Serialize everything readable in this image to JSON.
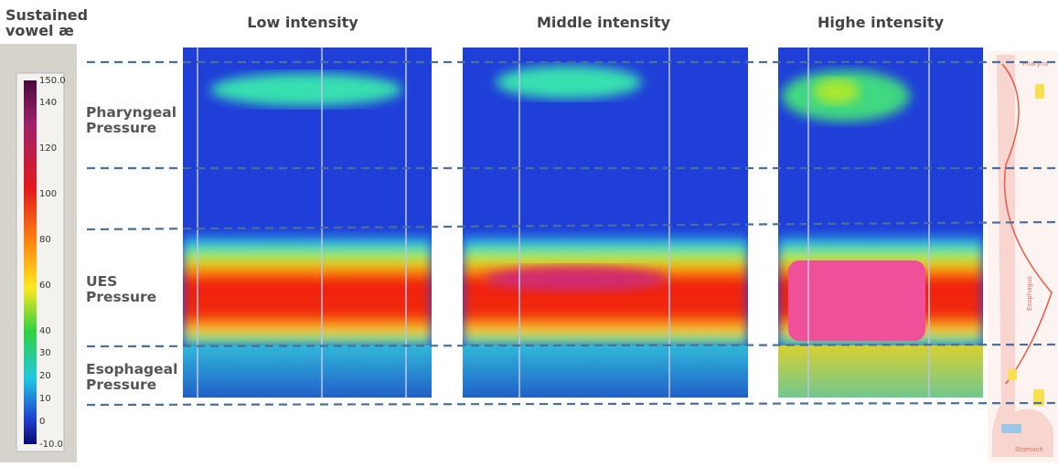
{
  "legend_box": {
    "title_lines": [
      "Sustained",
      "vowel æ"
    ],
    "colorbar_labels": [
      "150.0",
      "140",
      "120",
      "100",
      "80",
      "60",
      "40",
      "30",
      "20",
      "10",
      "0",
      "-10.0"
    ]
  },
  "panels": [
    {
      "title": "Low intensity"
    },
    {
      "title": "Middle intensity"
    },
    {
      "title": "Highe intensity"
    }
  ],
  "regions": [
    {
      "lines": [
        "Pharyngeal",
        "Pressure"
      ]
    },
    {
      "lines": [
        "UES",
        "Pressure"
      ]
    },
    {
      "lines": [
        "Esophageal",
        "Pressure"
      ]
    }
  ],
  "anatomy": {
    "top": "Pharynx",
    "middle": "Esophagus",
    "bottom": "Stomach"
  }
}
